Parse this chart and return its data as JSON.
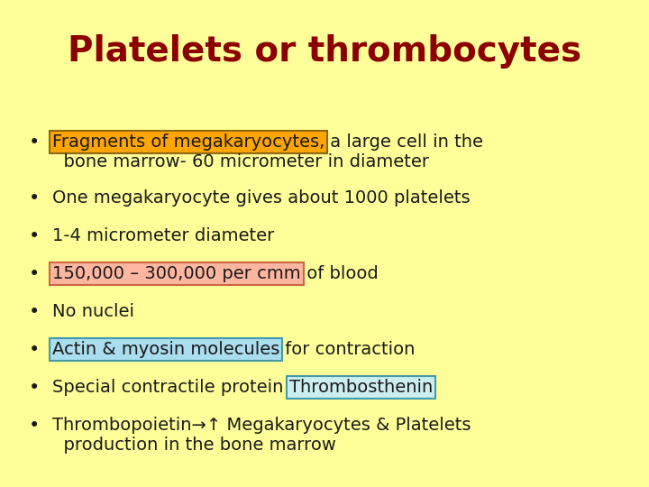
{
  "title": "Platelets or thrombocytes",
  "title_color": "#8B0000",
  "title_fontsize": 28,
  "background_color": "#FFFF99",
  "text_color": "#1a1a1a",
  "bullet_fontsize": 14,
  "lines": [
    {
      "segments": [
        {
          "text": "Fragments of megakaryocytes,",
          "highlight": true,
          "bg": "#FFA500",
          "border": "#8B6914"
        },
        {
          "text": " a large cell in the",
          "highlight": false
        }
      ],
      "line2": "  bone marrow- 60 micrometer in diameter"
    },
    {
      "segments": [
        {
          "text": "One megakaryocyte gives about 1000 platelets",
          "highlight": false
        }
      ],
      "line2": null
    },
    {
      "segments": [
        {
          "text": "1-4 micrometer diameter",
          "highlight": false
        }
      ],
      "line2": null
    },
    {
      "segments": [
        {
          "text": "150,000 – 300,000 per cmm",
          "highlight": true,
          "bg": "#FFB6A0",
          "border": "#cc6644"
        },
        {
          "text": " of blood",
          "highlight": false
        }
      ],
      "line2": null
    },
    {
      "segments": [
        {
          "text": "No nuclei",
          "highlight": false
        }
      ],
      "line2": null
    },
    {
      "segments": [
        {
          "text": "Actin & myosin molecules",
          "highlight": true,
          "bg": "#AADDEE",
          "border": "#4499AA"
        },
        {
          "text": " for contraction",
          "highlight": false
        }
      ],
      "line2": null
    },
    {
      "segments": [
        {
          "text": "Special contractile protein ",
          "highlight": false
        },
        {
          "text": "Thrombosthenin",
          "highlight": true,
          "bg": "#CCEEEE",
          "border": "#4499AA"
        }
      ],
      "line2": null
    },
    {
      "segments": [
        {
          "text": "Thrombopoietin→↑ Megakaryocytes & Platelets",
          "highlight": false
        }
      ],
      "line2": "  production in the bone marrow"
    }
  ]
}
